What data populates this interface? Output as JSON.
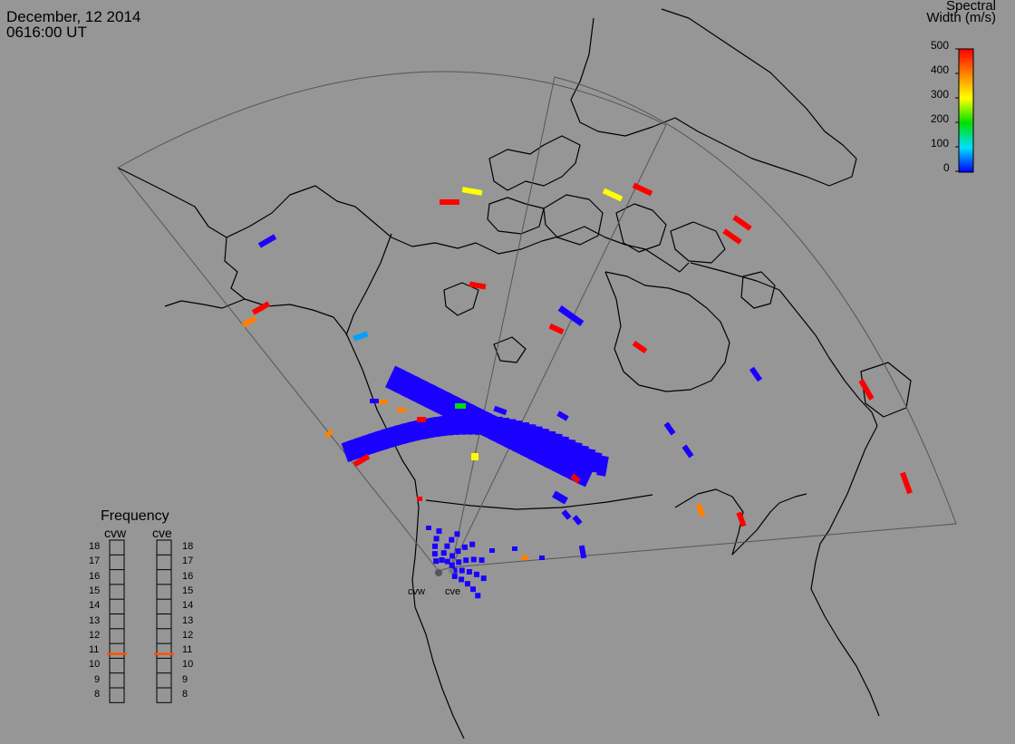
{
  "header": {
    "date": "December, 12 2014",
    "time": "0616:00 UT"
  },
  "colorbar": {
    "title_line1": "Spectral",
    "title_line2": "Width (m/s)",
    "ticks": [
      "500",
      "400",
      "300",
      "200",
      "100",
      "0"
    ],
    "colors": [
      "#ff0000",
      "#ff8000",
      "#ffff00",
      "#00e000",
      "#00e0ff",
      "#0000ff"
    ]
  },
  "frequency_panel": {
    "title": "Frequency",
    "radars": [
      "cvw",
      "cve"
    ],
    "scale": [
      "18",
      "17",
      "16",
      "15",
      "14",
      "13",
      "12",
      "11",
      "10",
      "9",
      "8"
    ],
    "values_mhz": [
      10.8,
      10.8
    ],
    "marker_color": "#ff5000"
  },
  "radar_sites": [
    "cvw",
    "cve"
  ],
  "colors": {
    "background": "#969696",
    "coastline": "#000000",
    "fov": "#555555",
    "backscatter_low": "#1a00ff"
  }
}
